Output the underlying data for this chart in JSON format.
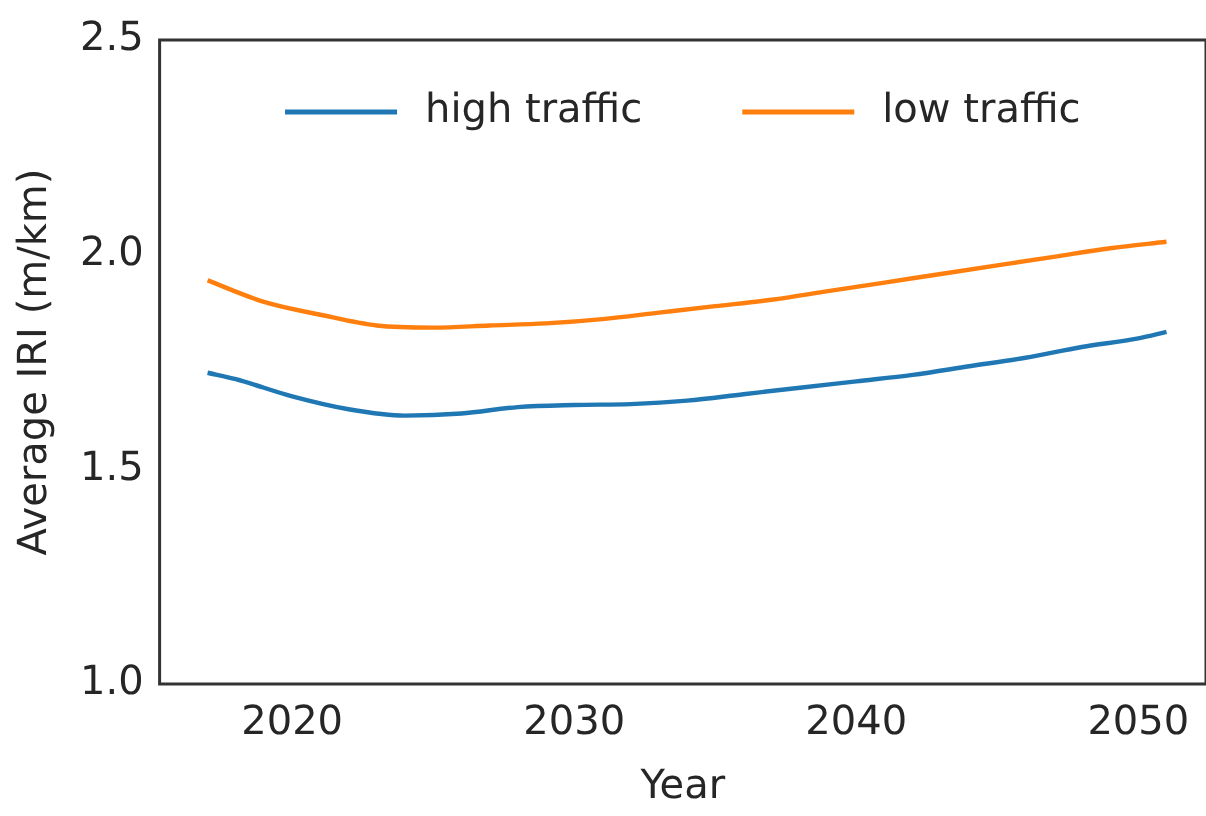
{
  "chart_data": {
    "type": "line",
    "xlabel": "Year",
    "ylabel": "Average IRI (m/km)",
    "xlim": [
      2015.3,
      2052.4
    ],
    "xticks": [
      2020,
      2030,
      2040,
      2050
    ],
    "ylim": [
      1.0,
      2.5
    ],
    "yticks": [
      {
        "value": 1.0,
        "label": "1.0"
      },
      1.5,
      {
        "value": 2.0,
        "label": "2.0"
      },
      2.5
    ],
    "grid": false,
    "legend": "top",
    "marker": "none",
    "line_style": "solid",
    "series": [
      {
        "name": "high traffic",
        "color": "#1f77b4",
        "x": [
          2017,
          2018,
          2020,
          2022,
          2024,
          2026,
          2028,
          2030,
          2032,
          2034,
          2036,
          2038,
          2040,
          2042,
          2044,
          2046,
          2048,
          2050,
          2051
        ],
        "values": [
          1.725,
          1.71,
          1.67,
          1.64,
          1.625,
          1.63,
          1.645,
          1.65,
          1.652,
          1.66,
          1.675,
          1.69,
          1.705,
          1.72,
          1.74,
          1.76,
          1.785,
          1.805,
          1.82
        ]
      },
      {
        "name": "low traffic",
        "color": "#ff7f0e",
        "x": [
          2017,
          2019,
          2021,
          2023,
          2025,
          2027,
          2029,
          2031,
          2033,
          2035,
          2037,
          2039,
          2041,
          2043,
          2045,
          2047,
          2049,
          2051
        ],
        "values": [
          1.94,
          1.89,
          1.86,
          1.835,
          1.83,
          1.835,
          1.84,
          1.85,
          1.865,
          1.88,
          1.895,
          1.915,
          1.935,
          1.955,
          1.975,
          1.995,
          2.015,
          2.03
        ]
      }
    ]
  }
}
